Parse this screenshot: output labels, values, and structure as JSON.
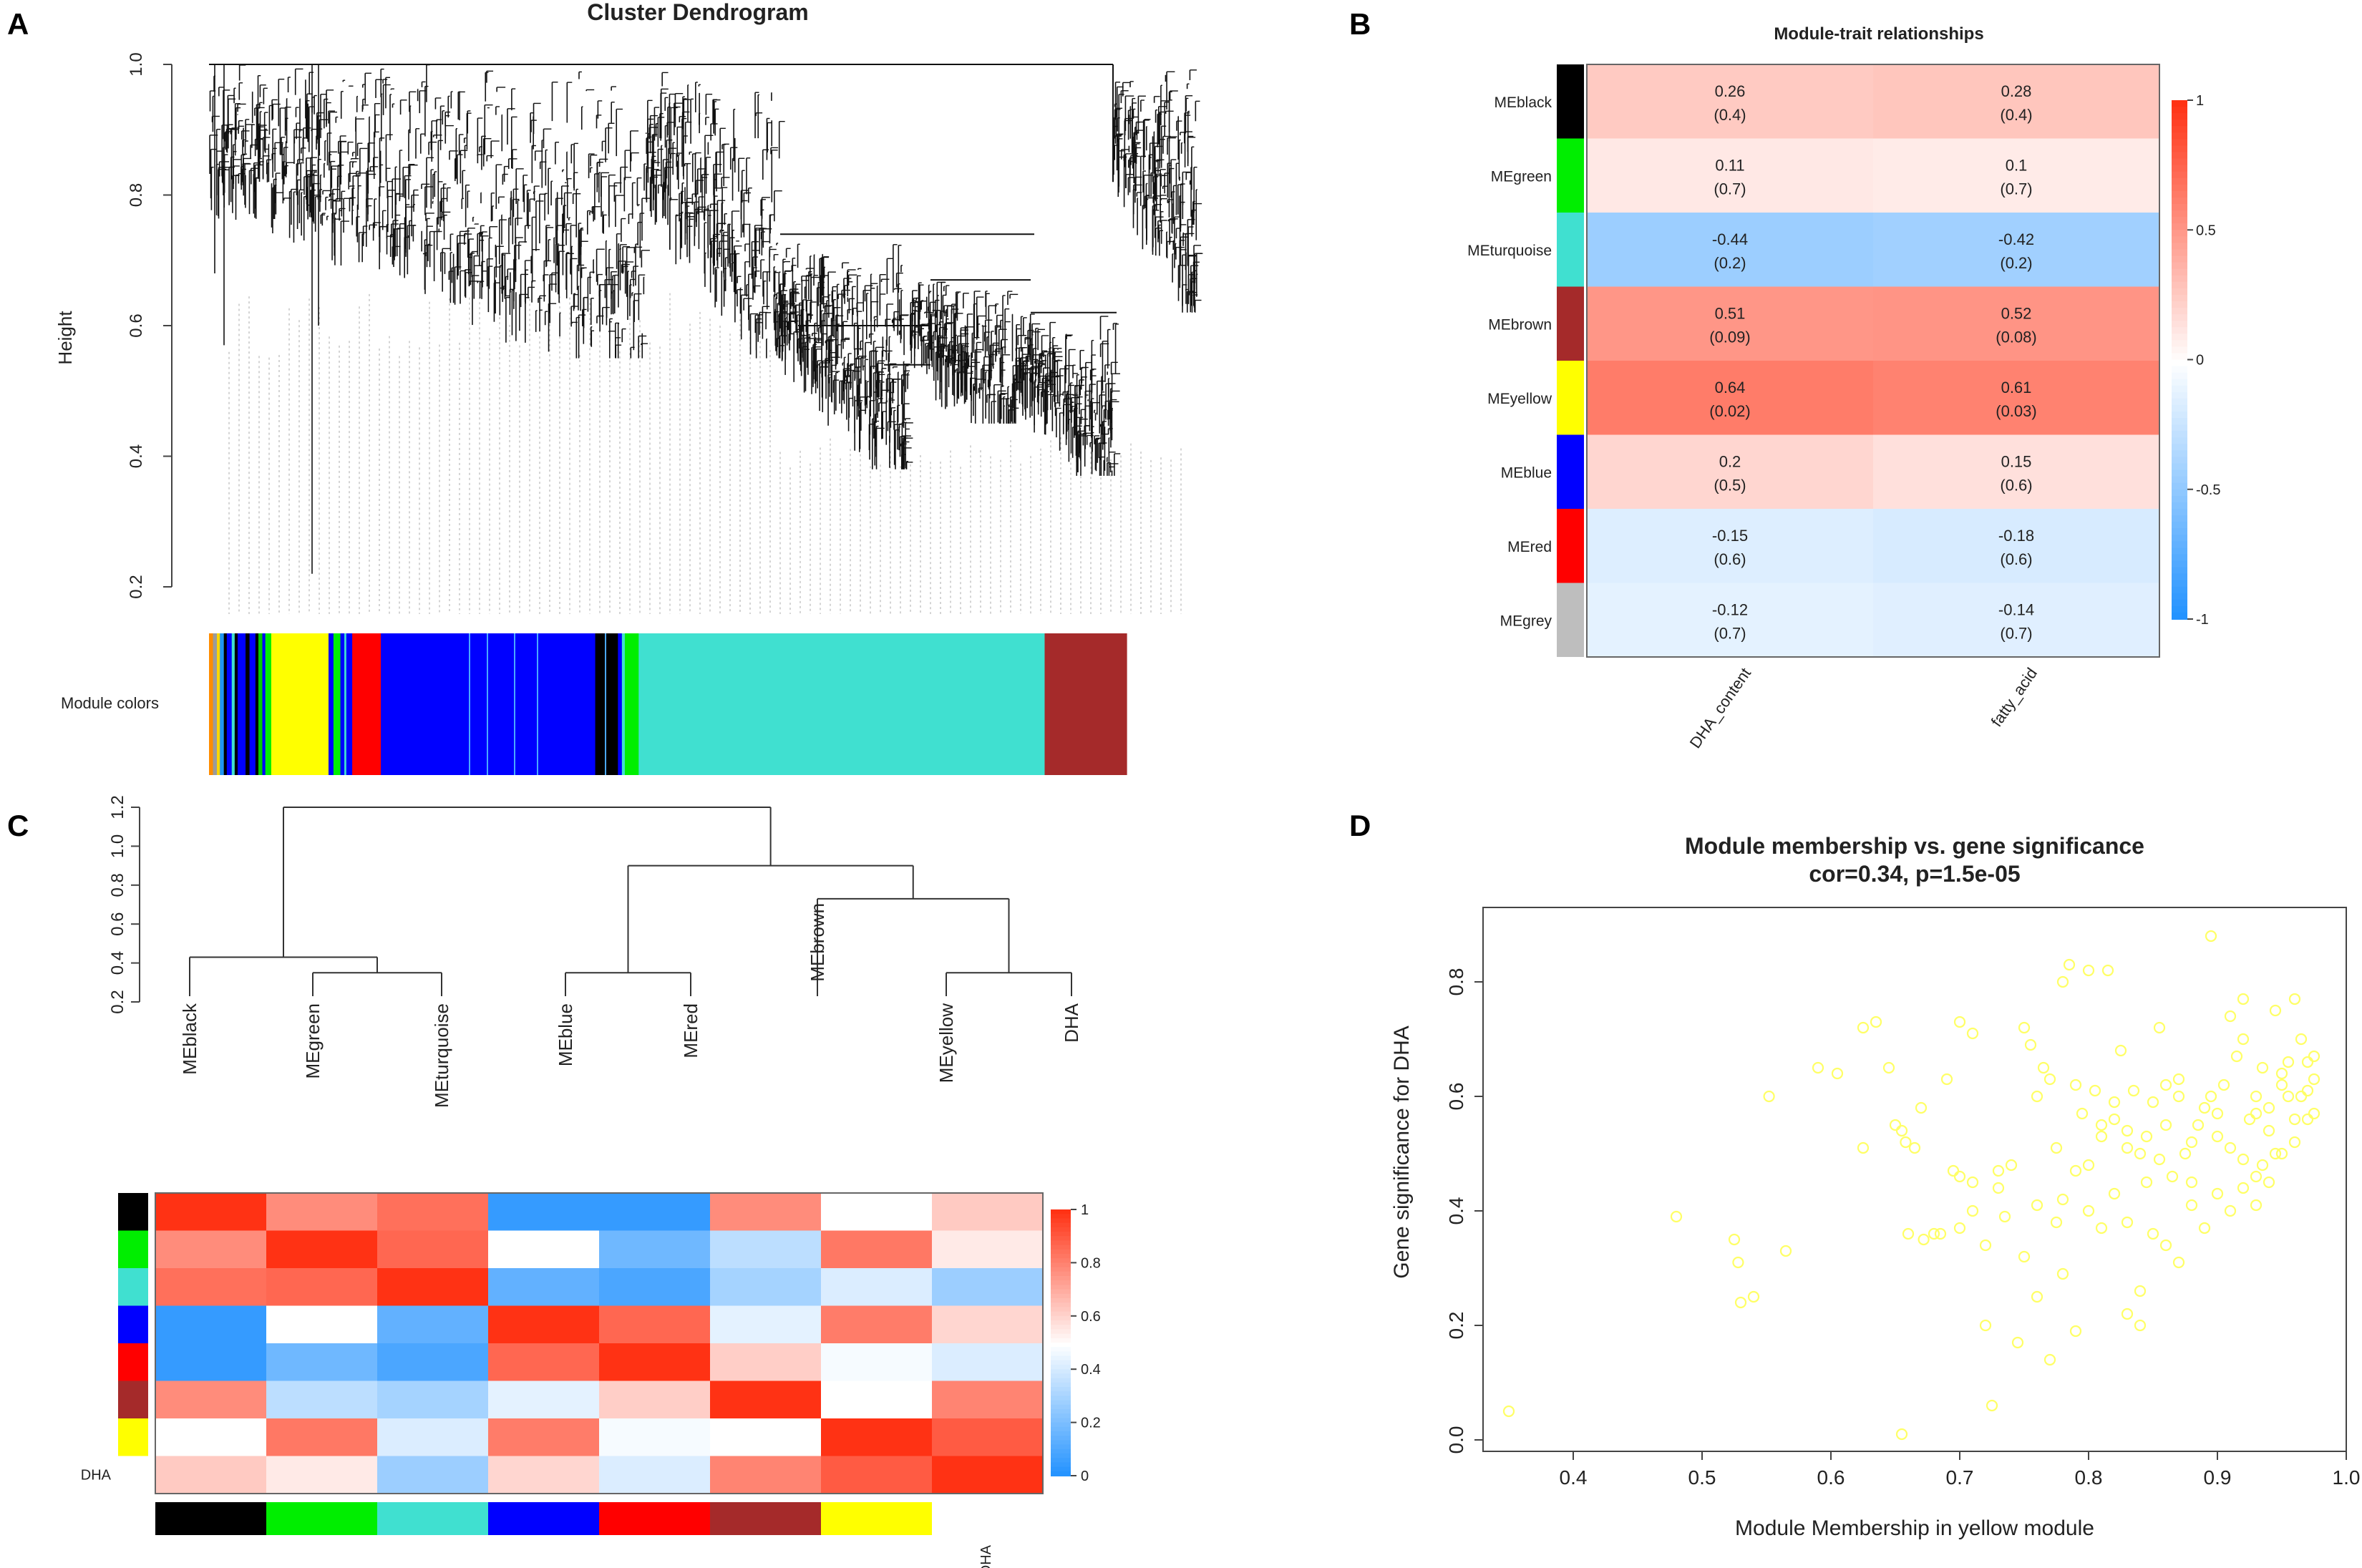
{
  "panels": {
    "a": "A",
    "b": "B",
    "c": "C",
    "d": "D"
  },
  "chart_data": [
    {
      "id": "panel-a",
      "type": "dendrogram",
      "title": "Cluster Dendrogram",
      "ylabel": "Height",
      "ylim": [
        0.2,
        1.0
      ],
      "yticks": [
        "0.2",
        "0.4",
        "0.6",
        "0.8",
        "1.0"
      ],
      "color_bar_label": "Module colors",
      "module_color_segments": [
        {
          "color": "#FF8C00",
          "width": 0.004
        },
        {
          "color": "#9B9B9B",
          "width": 0.004
        },
        {
          "color": "#FFD700",
          "width": 0.003
        },
        {
          "color": "#2196F3",
          "width": 0.004
        },
        {
          "color": "#000000",
          "width": 0.003
        },
        {
          "color": "#0000FF",
          "width": 0.005
        },
        {
          "color": "#40E0D0",
          "width": 0.003
        },
        {
          "color": "#000000",
          "width": 0.003
        },
        {
          "color": "#0000FF",
          "width": 0.008
        },
        {
          "color": "#000000",
          "width": 0.004
        },
        {
          "color": "#0000FF",
          "width": 0.006
        },
        {
          "color": "#000000",
          "width": 0.003
        },
        {
          "color": "#00CC00",
          "width": 0.004
        },
        {
          "color": "#0000FF",
          "width": 0.003
        },
        {
          "color": "#00EE00",
          "width": 0.006
        },
        {
          "color": "#FFFF00",
          "width": 0.058
        },
        {
          "color": "#0000FF",
          "width": 0.005
        },
        {
          "color": "#00EE00",
          "width": 0.007
        },
        {
          "color": "#0000FF",
          "width": 0.004
        },
        {
          "color": "#40E0D0",
          "width": 0.002
        },
        {
          "color": "#0000FF",
          "width": 0.006
        },
        {
          "color": "#FF0000",
          "width": 0.029
        },
        {
          "color": "#0000FF",
          "width": 0.217
        },
        {
          "color": "#000000",
          "width": 0.023
        },
        {
          "color": "#0000FF",
          "width": 0.004
        },
        {
          "color": "#40E0D0",
          "width": 0.003
        },
        {
          "color": "#00EE00",
          "width": 0.014
        },
        {
          "color": "#40E0D0",
          "width": 0.411
        },
        {
          "color": "#A52A2A",
          "width": 0.083
        }
      ]
    },
    {
      "id": "panel-b",
      "type": "heatmap",
      "title": "Module-trait relationships",
      "columns": [
        "DHA_content",
        "fatty_acid"
      ],
      "rows": [
        {
          "name": "MEblack",
          "color": "#000000",
          "cells": [
            {
              "cor": 0.26,
              "label": "0.26",
              "p": "(0.4)"
            },
            {
              "cor": 0.28,
              "label": "0.28",
              "p": "(0.4)"
            }
          ]
        },
        {
          "name": "MEgreen",
          "color": "#00EE00",
          "cells": [
            {
              "cor": 0.11,
              "label": "0.11",
              "p": "(0.7)"
            },
            {
              "cor": 0.1,
              "label": "0.1",
              "p": "(0.7)"
            }
          ]
        },
        {
          "name": "MEturquoise",
          "color": "#40E0D0",
          "cells": [
            {
              "cor": -0.44,
              "label": "-0.44",
              "p": "(0.2)"
            },
            {
              "cor": -0.42,
              "label": "-0.42",
              "p": "(0.2)"
            }
          ]
        },
        {
          "name": "MEbrown",
          "color": "#A52A2A",
          "cells": [
            {
              "cor": 0.51,
              "label": "0.51",
              "p": "(0.09)"
            },
            {
              "cor": 0.52,
              "label": "0.52",
              "p": "(0.08)"
            }
          ]
        },
        {
          "name": "MEyellow",
          "color": "#FFFF00",
          "cells": [
            {
              "cor": 0.64,
              "label": "0.64",
              "p": "(0.02)"
            },
            {
              "cor": 0.61,
              "label": "0.61",
              "p": "(0.03)"
            }
          ]
        },
        {
          "name": "MEblue",
          "color": "#0000FF",
          "cells": [
            {
              "cor": 0.2,
              "label": "0.2",
              "p": "(0.5)"
            },
            {
              "cor": 0.15,
              "label": "0.15",
              "p": "(0.6)"
            }
          ]
        },
        {
          "name": "MEred",
          "color": "#FF0000",
          "cells": [
            {
              "cor": -0.15,
              "label": "-0.15",
              "p": "(0.6)"
            },
            {
              "cor": -0.18,
              "label": "-0.18",
              "p": "(0.6)"
            }
          ]
        },
        {
          "name": "MEgrey",
          "color": "#BEBEBE",
          "cells": [
            {
              "cor": -0.12,
              "label": "-0.12",
              "p": "(0.7)"
            },
            {
              "cor": -0.14,
              "label": "-0.14",
              "p": "(0.7)"
            }
          ]
        }
      ],
      "legend_range": [
        -1,
        1
      ],
      "legend_ticks": [
        {
          "v": 1,
          "label": "1"
        },
        {
          "v": 0.5,
          "label": "0.5"
        },
        {
          "v": 0,
          "label": "0"
        },
        {
          "v": -0.5,
          "label": "-0.5"
        },
        {
          "v": -1,
          "label": "-1"
        }
      ]
    },
    {
      "id": "panel-c-dendrogram",
      "type": "dendrogram",
      "ylim": [
        0.2,
        1.2
      ],
      "yticks": [
        "0.2",
        "0.4",
        "0.6",
        "0.8",
        "1.0",
        "1.2"
      ],
      "leaves": [
        "MEblack",
        "MEgreen",
        "MEturquoise",
        "MEblue",
        "MEred",
        "MEbrown",
        "MEyellow",
        "DHA"
      ],
      "leaf_heights": [
        0.43,
        0.35,
        0.35,
        0.35,
        0.35,
        0.73,
        0.35,
        0.35
      ],
      "merges": [
        {
          "left": 1,
          "right": 2,
          "height": 0.35
        },
        {
          "left": 3,
          "right": 4,
          "height": 0.35
        },
        {
          "left": 6,
          "right": 7,
          "height": 0.35
        },
        {
          "left": 0,
          "right": "g0",
          "height": 0.43
        },
        {
          "left": 5,
          "right": "g2",
          "height": 0.73
        },
        {
          "left": "g1",
          "right": "g4",
          "height": 0.9
        },
        {
          "left": "g3",
          "right": "g5",
          "height": 1.2
        }
      ]
    },
    {
      "id": "panel-c-heatmap",
      "type": "heatmap",
      "row_colors": [
        "#000000",
        "#00EE00",
        "#40E0D0",
        "#0000FF",
        "#FF0000",
        "#A52A2A",
        "#FFFF00",
        "#FFFFFF"
      ],
      "row_labels": [
        "",
        "",
        "",
        "",
        "",
        "",
        "",
        "DHA"
      ],
      "col_colors": [
        "#000000",
        "#00EE00",
        "#40E0D0",
        "#0000FF",
        "#FF0000",
        "#A52A2A",
        "#FFFF00",
        "#FFFFFF"
      ],
      "col_labels": [
        "",
        "",
        "",
        "",
        "",
        "",
        "",
        "DHA"
      ],
      "values": [
        [
          1.0,
          0.78,
          0.85,
          0.05,
          0.05,
          0.78,
          0.5,
          0.63
        ],
        [
          0.78,
          1.0,
          0.87,
          0.5,
          0.18,
          0.35,
          0.83,
          0.55
        ],
        [
          0.85,
          0.87,
          1.0,
          0.15,
          0.1,
          0.3,
          0.42,
          0.28
        ],
        [
          0.05,
          0.5,
          0.15,
          1.0,
          0.87,
          0.44,
          0.82,
          0.6
        ],
        [
          0.05,
          0.18,
          0.1,
          0.87,
          1.0,
          0.62,
          0.48,
          0.42
        ],
        [
          0.78,
          0.35,
          0.3,
          0.44,
          0.62,
          1.0,
          0.5,
          0.8
        ],
        [
          0.5,
          0.83,
          0.42,
          0.82,
          0.48,
          0.5,
          1.0,
          0.9
        ],
        [
          0.63,
          0.55,
          0.28,
          0.6,
          0.42,
          0.8,
          0.9,
          1.0
        ]
      ],
      "legend_ticks": [
        "1",
        "0.8",
        "0.6",
        "0.4",
        "0.2",
        "0"
      ]
    },
    {
      "id": "panel-d",
      "type": "scatter",
      "title": "Module membership vs. gene significance",
      "subtitle": "cor=0.34, p=1.5e-05",
      "xlabel": "Module Membership in yellow module",
      "ylabel": "Gene significance for DHA",
      "xlim": [
        0.33,
        1.0
      ],
      "ylim": [
        -0.02,
        0.93
      ],
      "xticks": [
        "0.4",
        "0.5",
        "0.6",
        "0.7",
        "0.8",
        "0.9",
        "1.0"
      ],
      "yticks": [
        "0.0",
        "0.2",
        "0.4",
        "0.6",
        "0.8"
      ],
      "point_color": "#FFFF66",
      "points": [
        [
          0.35,
          0.05
        ],
        [
          0.48,
          0.39
        ],
        [
          0.525,
          0.35
        ],
        [
          0.528,
          0.31
        ],
        [
          0.53,
          0.24
        ],
        [
          0.54,
          0.25
        ],
        [
          0.552,
          0.6
        ],
        [
          0.565,
          0.33
        ],
        [
          0.59,
          0.65
        ],
        [
          0.605,
          0.64
        ],
        [
          0.625,
          0.72
        ],
        [
          0.625,
          0.51
        ],
        [
          0.635,
          0.73
        ],
        [
          0.645,
          0.65
        ],
        [
          0.65,
          0.55
        ],
        [
          0.655,
          0.54
        ],
        [
          0.658,
          0.52
        ],
        [
          0.66,
          0.36
        ],
        [
          0.665,
          0.51
        ],
        [
          0.67,
          0.58
        ],
        [
          0.672,
          0.35
        ],
        [
          0.68,
          0.36
        ],
        [
          0.685,
          0.36
        ],
        [
          0.69,
          0.63
        ],
        [
          0.7,
          0.73
        ],
        [
          0.71,
          0.71
        ],
        [
          0.695,
          0.47
        ],
        [
          0.7,
          0.46
        ],
        [
          0.71,
          0.45
        ],
        [
          0.73,
          0.47
        ],
        [
          0.74,
          0.48
        ],
        [
          0.75,
          0.72
        ],
        [
          0.755,
          0.69
        ],
        [
          0.76,
          0.6
        ],
        [
          0.765,
          0.65
        ],
        [
          0.77,
          0.63
        ],
        [
          0.775,
          0.51
        ],
        [
          0.78,
          0.8
        ],
        [
          0.785,
          0.83
        ],
        [
          0.79,
          0.62
        ],
        [
          0.795,
          0.57
        ],
        [
          0.8,
          0.82
        ],
        [
          0.805,
          0.61
        ],
        [
          0.81,
          0.55
        ],
        [
          0.815,
          0.82
        ],
        [
          0.82,
          0.59
        ],
        [
          0.825,
          0.68
        ],
        [
          0.83,
          0.54
        ],
        [
          0.835,
          0.61
        ],
        [
          0.84,
          0.5
        ],
        [
          0.845,
          0.45
        ],
        [
          0.85,
          0.59
        ],
        [
          0.855,
          0.72
        ],
        [
          0.86,
          0.55
        ],
        [
          0.865,
          0.46
        ],
        [
          0.87,
          0.6
        ],
        [
          0.875,
          0.5
        ],
        [
          0.88,
          0.41
        ],
        [
          0.885,
          0.55
        ],
        [
          0.89,
          0.58
        ],
        [
          0.895,
          0.88
        ],
        [
          0.9,
          0.57
        ],
        [
          0.905,
          0.62
        ],
        [
          0.91,
          0.74
        ],
        [
          0.915,
          0.67
        ],
        [
          0.92,
          0.7
        ],
        [
          0.925,
          0.56
        ],
        [
          0.93,
          0.6
        ],
        [
          0.935,
          0.65
        ],
        [
          0.94,
          0.54
        ],
        [
          0.945,
          0.5
        ],
        [
          0.95,
          0.64
        ],
        [
          0.955,
          0.6
        ],
        [
          0.96,
          0.56
        ],
        [
          0.965,
          0.7
        ],
        [
          0.97,
          0.61
        ],
        [
          0.975,
          0.57
        ],
        [
          0.92,
          0.77
        ],
        [
          0.935,
          0.48
        ],
        [
          0.945,
          0.75
        ],
        [
          0.955,
          0.66
        ],
        [
          0.96,
          0.77
        ],
        [
          0.97,
          0.66
        ],
        [
          0.975,
          0.67
        ],
        [
          0.78,
          0.29
        ],
        [
          0.76,
          0.25
        ],
        [
          0.75,
          0.32
        ],
        [
          0.745,
          0.17
        ],
        [
          0.77,
          0.14
        ],
        [
          0.79,
          0.19
        ],
        [
          0.8,
          0.4
        ],
        [
          0.81,
          0.37
        ],
        [
          0.83,
          0.22
        ],
        [
          0.84,
          0.2
        ],
        [
          0.84,
          0.26
        ],
        [
          0.82,
          0.43
        ],
        [
          0.83,
          0.38
        ],
        [
          0.85,
          0.36
        ],
        [
          0.86,
          0.34
        ],
        [
          0.87,
          0.31
        ],
        [
          0.88,
          0.45
        ],
        [
          0.89,
          0.37
        ],
        [
          0.9,
          0.43
        ],
        [
          0.91,
          0.4
        ],
        [
          0.92,
          0.44
        ],
        [
          0.93,
          0.41
        ],
        [
          0.93,
          0.46
        ],
        [
          0.94,
          0.45
        ],
        [
          0.95,
          0.5
        ],
        [
          0.96,
          0.52
        ],
        [
          0.72,
          0.2
        ],
        [
          0.725,
          0.06
        ],
        [
          0.655,
          0.01
        ],
        [
          0.7,
          0.37
        ],
        [
          0.71,
          0.4
        ],
        [
          0.72,
          0.34
        ],
        [
          0.73,
          0.44
        ],
        [
          0.735,
          0.39
        ],
        [
          0.76,
          0.41
        ],
        [
          0.775,
          0.38
        ],
        [
          0.78,
          0.42
        ],
        [
          0.79,
          0.47
        ],
        [
          0.8,
          0.48
        ],
        [
          0.81,
          0.53
        ],
        [
          0.82,
          0.56
        ],
        [
          0.83,
          0.51
        ],
        [
          0.845,
          0.53
        ],
        [
          0.855,
          0.49
        ],
        [
          0.86,
          0.62
        ],
        [
          0.87,
          0.63
        ],
        [
          0.88,
          0.52
        ],
        [
          0.895,
          0.6
        ],
        [
          0.9,
          0.53
        ],
        [
          0.91,
          0.51
        ],
        [
          0.92,
          0.49
        ],
        [
          0.93,
          0.57
        ],
        [
          0.94,
          0.58
        ],
        [
          0.95,
          0.62
        ],
        [
          0.965,
          0.6
        ],
        [
          0.97,
          0.56
        ],
        [
          0.975,
          0.63
        ]
      ]
    }
  ]
}
